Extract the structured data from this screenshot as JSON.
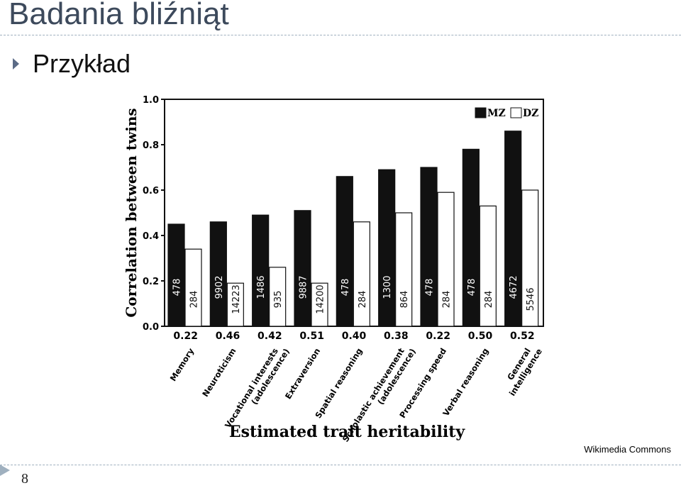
{
  "slide": {
    "title": "Badania bliźniąt",
    "bullet": "Przykład",
    "credit": "Wikimedia Commons",
    "page_number": "8"
  },
  "colors": {
    "title": "#3d4a5c",
    "dashed_rule": "#9fb0bf",
    "bullet_marker": "#5b6b86",
    "mz_bar": "#111111",
    "dz_bar": "#ffffff"
  },
  "chart_data": {
    "type": "bar",
    "xlabel": "Estimated trait heritability",
    "ylabel": "Correlation between twins",
    "ylim": [
      0,
      1.0
    ],
    "yticks": [
      "0.0",
      "0.2",
      "0.4",
      "0.6",
      "0.8",
      "1.0"
    ],
    "legend_position": "top-right",
    "grid": false,
    "categories": [
      "Memory",
      "Neuroticism",
      "Vocational interests (adolescence)",
      "Extraversion",
      "Spatial reasoning",
      "Scholastic achievement (adolescence)",
      "Processing speed",
      "Verbal reasoning",
      "General intelligence"
    ],
    "heritability": [
      "0.22",
      "0.46",
      "0.42",
      "0.51",
      "0.40",
      "0.38",
      "0.22",
      "0.50",
      "0.52"
    ],
    "series": [
      {
        "name": "MZ",
        "values": [
          0.45,
          0.46,
          0.49,
          0.51,
          0.66,
          0.69,
          0.7,
          0.78,
          0.86
        ],
        "n": [
          "478",
          "9902",
          "1486",
          "9887",
          "478",
          "1300",
          "478",
          "478",
          "4672"
        ]
      },
      {
        "name": "DZ",
        "values": [
          0.34,
          0.19,
          0.26,
          0.19,
          0.46,
          0.5,
          0.59,
          0.53,
          0.6
        ],
        "n": [
          "284",
          "14223",
          "935",
          "14200",
          "284",
          "864",
          "284",
          "284",
          "5546"
        ]
      }
    ]
  }
}
